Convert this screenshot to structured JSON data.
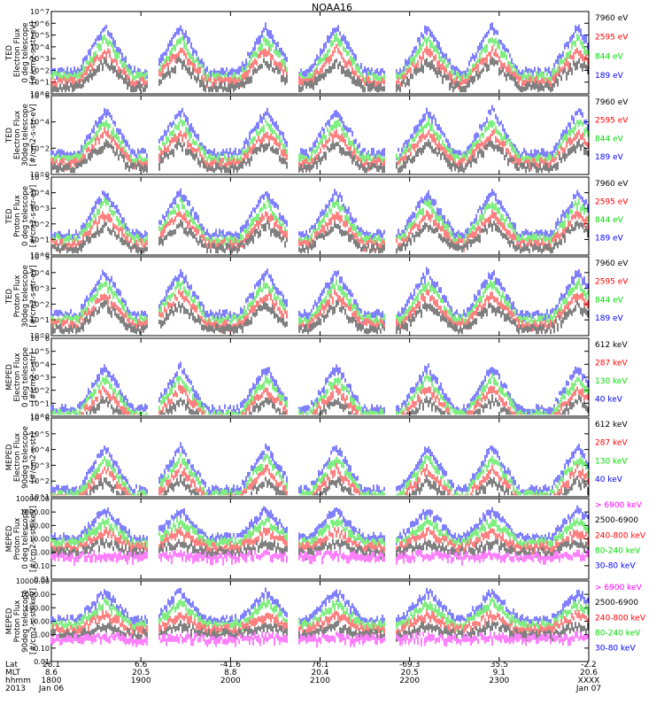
{
  "title": "NOAA16",
  "colors": {
    "black": "#000000",
    "red": "#ff0000",
    "green": "#00dd00",
    "blue": "#0000ff",
    "magenta": "#ff00ff"
  },
  "chart_data": [
    {
      "type": "line",
      "log": true,
      "ylabel": [
        "TED",
        "Electron Flux",
        "0 deg telescope",
        "[#/cm2-s-str-eV]"
      ],
      "yticks": [
        "10^0",
        "10^1",
        "10^2",
        "10^3",
        "10^4",
        "10^5",
        "10^6",
        "10^7"
      ],
      "ylim": [
        0,
        7
      ],
      "series": [
        {
          "name": "7960 eV",
          "color": "black"
        },
        {
          "name": "2595 eV",
          "color": "red"
        },
        {
          "name": "844 eV",
          "color": "green"
        },
        {
          "name": "189 eV",
          "color": "blue"
        }
      ]
    },
    {
      "type": "line",
      "log": true,
      "ylabel": [
        "TED",
        "Electron Flux",
        "30deg telescope",
        "[#/cm2-s-str-eV]"
      ],
      "yticks": [
        "10^0",
        "10^2",
        "10^4",
        "10^6"
      ],
      "ylim": [
        0,
        6
      ],
      "series": [
        {
          "name": "7960 eV",
          "color": "black"
        },
        {
          "name": "2595 eV",
          "color": "red"
        },
        {
          "name": "844 eV",
          "color": "green"
        },
        {
          "name": "189 eV",
          "color": "blue"
        }
      ]
    },
    {
      "type": "line",
      "log": true,
      "ylabel": [
        "TED",
        "Proton Flux",
        "0 deg telescope",
        "[#/cm2-s-str-eV]"
      ],
      "yticks": [
        "10^0",
        "10^1",
        "10^2",
        "10^3",
        "10^4",
        "10^5"
      ],
      "ylim": [
        0,
        5
      ],
      "series": [
        {
          "name": "7960 eV",
          "color": "black"
        },
        {
          "name": "2595 eV",
          "color": "red"
        },
        {
          "name": "844 eV",
          "color": "green"
        },
        {
          "name": "189 eV",
          "color": "blue"
        }
      ]
    },
    {
      "type": "line",
      "log": true,
      "ylabel": [
        "TED",
        "Proton Flux",
        "30deg telescope",
        "[#/cm2-s-str-eV]"
      ],
      "yticks": [
        "10^0",
        "10^1",
        "10^2",
        "10^3",
        "10^4",
        "10^5"
      ],
      "ylim": [
        0,
        5
      ],
      "series": [
        {
          "name": "7960 eV",
          "color": "black"
        },
        {
          "name": "2595 eV",
          "color": "red"
        },
        {
          "name": "844 eV",
          "color": "green"
        },
        {
          "name": "189 eV",
          "color": "blue"
        }
      ]
    },
    {
      "type": "line",
      "log": true,
      "ylabel": [
        "MEPED",
        "Electron Flux",
        "0 deg telescope",
        "[#/cm2-s-str]"
      ],
      "yticks": [
        "10^0",
        "10^1",
        "10^2",
        "10^3",
        "10^4",
        "10^5",
        "10^6"
      ],
      "ylim": [
        0,
        6
      ],
      "series": [
        {
          "name": "612 keV",
          "color": "black"
        },
        {
          "name": "287 keV",
          "color": "red"
        },
        {
          "name": "130 keV",
          "color": "green"
        },
        {
          "name": "40 keV",
          "color": "blue"
        }
      ]
    },
    {
      "type": "line",
      "log": true,
      "ylabel": [
        "MEPED",
        "Electron Flux",
        "90deg telescope",
        "[#/cm2-s-str]"
      ],
      "yticks": [
        "10^1",
        "10^2",
        "10^3",
        "10^4",
        "10^5",
        "10^6"
      ],
      "ylim": [
        1,
        6
      ],
      "series": [
        {
          "name": "612 keV",
          "color": "black"
        },
        {
          "name": "287 keV",
          "color": "red"
        },
        {
          "name": "130 keV",
          "color": "green"
        },
        {
          "name": "40 keV",
          "color": "blue"
        }
      ]
    },
    {
      "type": "line",
      "log": true,
      "ylabel": [
        "MEPED",
        "Proton Flux",
        "0 deg telescope",
        "[#/cm2-s-str-keV]"
      ],
      "yticks": [
        "0.01",
        "0.10",
        "1.00",
        "10.00",
        "100.00",
        "1000.00",
        "10000.00"
      ],
      "ylim": [
        -2,
        4
      ],
      "series": [
        {
          "name": "> 6900 keV",
          "color": "magenta"
        },
        {
          "name": "2500-6900",
          "color": "black"
        },
        {
          "name": "240-800 keV",
          "color": "red"
        },
        {
          "name": "80-240 keV",
          "color": "green"
        },
        {
          "name": "30-80 keV",
          "color": "blue"
        }
      ]
    },
    {
      "type": "line",
      "log": true,
      "ylabel": [
        "MEPED",
        "Proton Flux",
        "90deg telescope",
        "[#/cm2-s-str-keV]"
      ],
      "yticks": [
        "0.01",
        "0.10",
        "1.00",
        "10.00",
        "100.00",
        "1000.00",
        "10000.00"
      ],
      "ylim": [
        -2,
        4
      ],
      "series": [
        {
          "name": "> 6900 keV",
          "color": "magenta"
        },
        {
          "name": "2500-6900",
          "color": "black"
        },
        {
          "name": "240-800 keV",
          "color": "red"
        },
        {
          "name": "80-240 keV",
          "color": "green"
        },
        {
          "name": "30-80 keV",
          "color": "blue"
        }
      ]
    }
  ],
  "xaxis": {
    "row_labels": [
      "Lat",
      "MLT",
      "hhmm",
      "2013"
    ],
    "columns": [
      {
        "lat": "28.1",
        "mlt": "8.6",
        "hhmm": "1800",
        "date": "Jan 06"
      },
      {
        "lat": "6.6",
        "mlt": "20.5",
        "hhmm": "1900",
        "date": ""
      },
      {
        "lat": "-41.6",
        "mlt": "8.8",
        "hhmm": "2000",
        "date": ""
      },
      {
        "lat": "76.1",
        "mlt": "20.4",
        "hhmm": "2100",
        "date": ""
      },
      {
        "lat": "-69.3",
        "mlt": "20.5",
        "hhmm": "2200",
        "date": ""
      },
      {
        "lat": "35.5",
        "mlt": "9.1",
        "hhmm": "2300",
        "date": ""
      },
      {
        "lat": "-2.2",
        "mlt": "20.6",
        "hhmm": "XXXX",
        "date": "Jan 07"
      }
    ]
  }
}
